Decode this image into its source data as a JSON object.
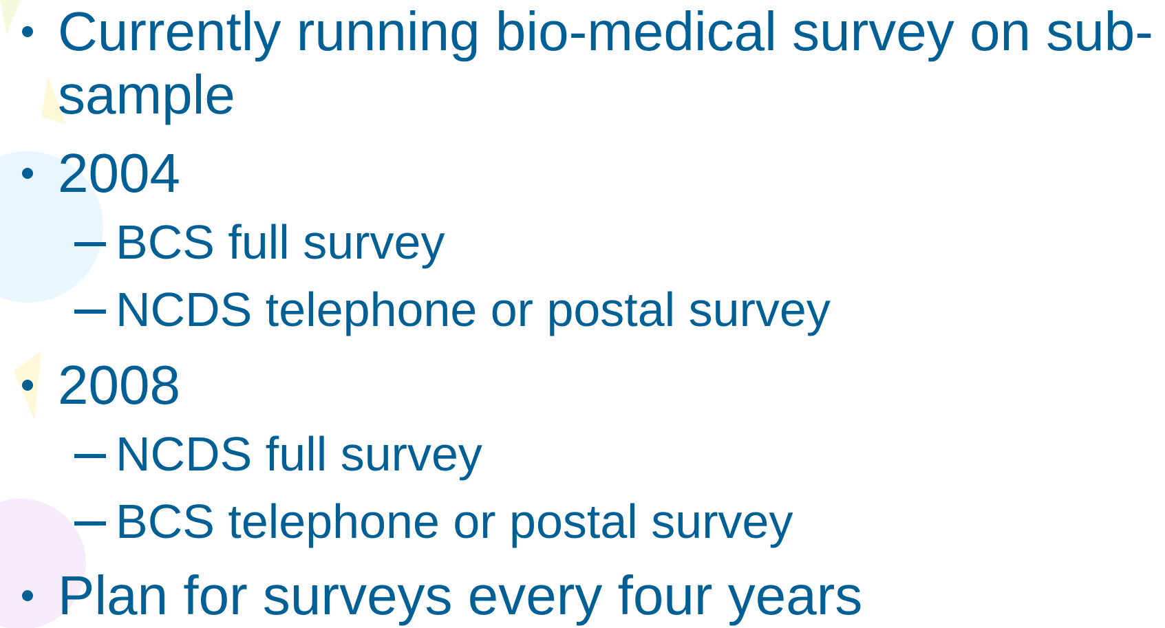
{
  "items": [
    {
      "text": "Currently running bio-medical survey on sub-sample",
      "subitems": []
    },
    {
      "text": "2004",
      "subitems": [
        "BCS full survey",
        "NCDS telephone or postal survey"
      ]
    },
    {
      "text": "2008",
      "subitems": [
        "NCDS full survey",
        "BCS telephone or postal survey"
      ]
    },
    {
      "text": "Plan for surveys every four years",
      "subitems": []
    }
  ]
}
